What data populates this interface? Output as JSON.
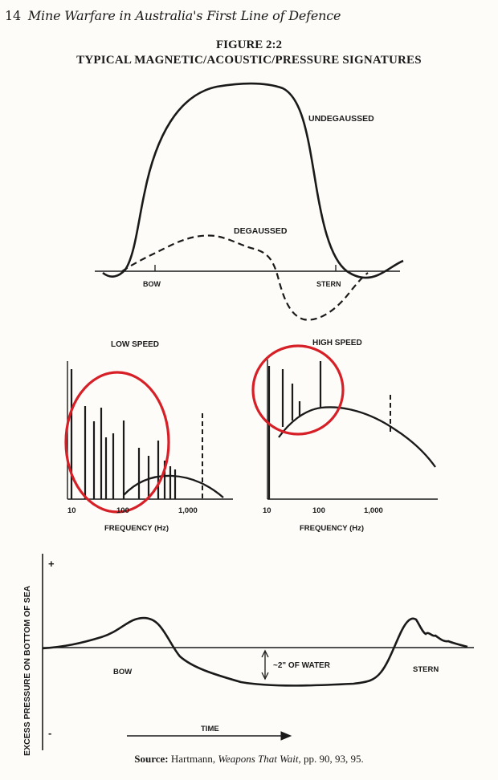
{
  "header": {
    "page_number": "14",
    "running_title": "Mine Warfare in Australia's First Line of Defence"
  },
  "figure": {
    "number": "FIGURE 2:2",
    "title": "TYPICAL MAGNETIC/ACOUSTIC/PRESSURE SIGNATURES"
  },
  "magnetic": {
    "undegaussed_label": "UNDEGAUSSED",
    "degaussed_label": "DEGAUSSED",
    "bow_label": "BOW",
    "stern_label": "STERN"
  },
  "acoustic": {
    "low_title": "LOW SPEED",
    "high_title": "HIGH SPEED",
    "ticks": [
      "10",
      "100",
      "1,000"
    ],
    "xlabel": "FREQUENCY (Hz)",
    "highlight_color": "#d61f26"
  },
  "pressure": {
    "ylabel": "EXCESS PRESSURE ON BOTTOM OF SEA",
    "plus": "+",
    "minus": "-",
    "bow_label": "BOW",
    "stern_label": "STERN",
    "depth_note": "~2\" OF WATER",
    "time_label": "TIME"
  },
  "source": {
    "lead": "Source:",
    "author": "Hartmann,",
    "book": "Weapons That Wait,",
    "pages": "pp. 90, 93, 95."
  }
}
